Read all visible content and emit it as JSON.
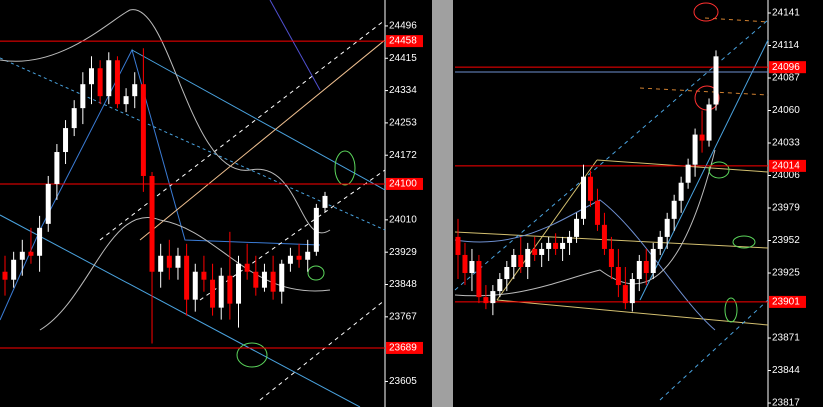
{
  "chart_data": [
    {
      "type": "candlestick",
      "up_color": "#ffffff",
      "down_color": "#ff0000",
      "line_color": "#ff0000",
      "ylim": [
        23541,
        24561
      ],
      "yticks": [
        24496,
        24415,
        24334,
        24253,
        24172,
        24010,
        23929,
        23848,
        23767,
        23605
      ],
      "hlines": [
        24458,
        24100,
        23689
      ],
      "open": [
        23880,
        23860,
        23910,
        23930,
        23920,
        24000,
        24100,
        24180,
        24240,
        24290,
        24350,
        24390,
        24320,
        24410,
        24300,
        24320,
        24350,
        24120,
        23880,
        23920,
        23890,
        23920,
        23810,
        23880,
        23860,
        23790,
        23870,
        23800,
        23900,
        23880,
        23840,
        23880,
        23830,
        23900,
        23920,
        23910,
        23930,
        24040
      ],
      "high": [
        23920,
        23930,
        23960,
        23990,
        24020,
        24120,
        24200,
        24260,
        24310,
        24380,
        24420,
        24410,
        24430,
        24420,
        24340,
        24380,
        24440,
        24130,
        23950,
        23960,
        23940,
        23950,
        23900,
        23920,
        23900,
        23890,
        23980,
        23920,
        23950,
        23920,
        23900,
        23920,
        23910,
        23940,
        23950,
        23960,
        24050,
        24080
      ],
      "low": [
        23820,
        23840,
        23870,
        23900,
        23880,
        23980,
        24060,
        24150,
        24220,
        24250,
        24300,
        24300,
        24300,
        24290,
        24280,
        24290,
        24080,
        23700,
        23840,
        23860,
        23860,
        23770,
        23780,
        23830,
        23770,
        23760,
        23760,
        23740,
        23860,
        23820,
        23830,
        23810,
        23800,
        23880,
        23890,
        23880,
        23920,
        24030
      ],
      "close": [
        23860,
        23910,
        23930,
        23920,
        23990,
        24100,
        24180,
        24240,
        24290,
        24350,
        24390,
        24320,
        24410,
        24300,
        24320,
        24350,
        24120,
        23880,
        23920,
        23890,
        23920,
        23810,
        23880,
        23860,
        23790,
        23870,
        23800,
        23900,
        23880,
        23840,
        23880,
        23830,
        23900,
        23920,
        23910,
        23930,
        24040,
        24070
      ]
    },
    {
      "type": "candlestick",
      "up_color": "#ffffff",
      "down_color": "#ff0000",
      "line_color": "#ff0000",
      "ylim": [
        23813.7,
        24151.8
      ],
      "yticks": [
        24141,
        24114,
        24087,
        24060,
        24033,
        24006,
        23979,
        23952,
        23925,
        23871,
        23844,
        23817
      ],
      "hlines": [
        24096,
        24014,
        23901
      ],
      "open": [
        23955,
        23940,
        23925,
        23935,
        23905,
        23900,
        23910,
        23920,
        23930,
        23940,
        23930,
        23945,
        23940,
        23945,
        23950,
        23945,
        23950,
        23955,
        23970,
        24005,
        23985,
        23965,
        23945,
        23930,
        23915,
        23900,
        23920,
        23935,
        23925,
        23945,
        23955,
        23970,
        23985,
        24000,
        24015,
        24040,
        24035,
        24065
      ],
      "high": [
        23970,
        23950,
        23945,
        23940,
        23915,
        23915,
        23925,
        23935,
        23945,
        23955,
        23950,
        23955,
        23950,
        23955,
        23958,
        23955,
        23960,
        23975,
        24015,
        24010,
        23995,
        23975,
        23955,
        23945,
        23930,
        23925,
        23940,
        23945,
        23950,
        23960,
        23975,
        23990,
        24005,
        24020,
        24045,
        24060,
        24070,
        24110
      ],
      "low": [
        23920,
        23915,
        23910,
        23900,
        23895,
        23890,
        23905,
        23910,
        23920,
        23925,
        23920,
        23935,
        23930,
        23935,
        23940,
        23935,
        23940,
        23950,
        23965,
        23980,
        23960,
        23940,
        23920,
        23905,
        23895,
        23893,
        23910,
        23915,
        23920,
        23940,
        23945,
        23960,
        23975,
        23995,
        24005,
        24025,
        24030,
        24060
      ],
      "close": [
        23940,
        23925,
        23935,
        23905,
        23900,
        23910,
        23920,
        23930,
        23940,
        23930,
        23945,
        23940,
        23945,
        23950,
        23945,
        23950,
        23955,
        23970,
        24005,
        23985,
        23965,
        23945,
        23930,
        23915,
        23900,
        23920,
        23935,
        23925,
        23945,
        23955,
        23970,
        23985,
        24000,
        24015,
        24040,
        24035,
        24065,
        24105
      ]
    }
  ]
}
